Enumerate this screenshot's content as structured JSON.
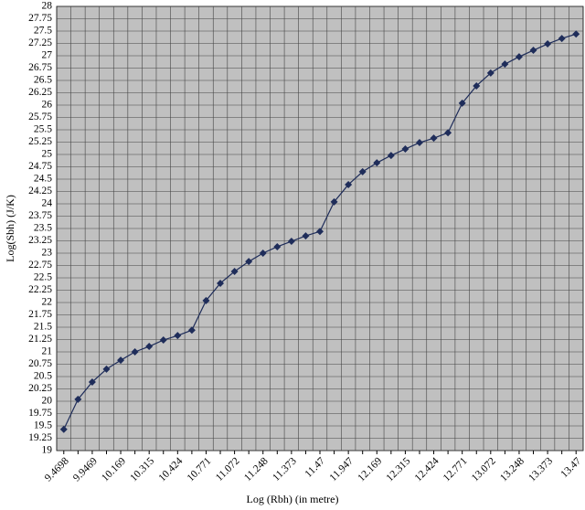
{
  "chart_data": {
    "type": "line",
    "x_label": "Log (Rbh) (in metre)",
    "y_label": "Log(Sbh) (J/K)",
    "categories": [
      "9.4698",
      null,
      "9.9469",
      null,
      "10.169",
      null,
      "10.315",
      null,
      "10.424",
      null,
      "10.771",
      null,
      "11.072",
      null,
      "11.248",
      null,
      "11.373",
      null,
      "11.47",
      null,
      "11.947",
      null,
      "12.169",
      null,
      "12.315",
      null,
      "12.424",
      null,
      "12.771",
      null,
      "13.072",
      null,
      "13.248",
      null,
      "13.373",
      null,
      "13.47"
    ],
    "series": [
      {
        "color": "#1f2d5a",
        "values": [
          19.43,
          20.04,
          20.39,
          20.65,
          20.83,
          21.0,
          21.11,
          21.24,
          21.33,
          21.44,
          22.04,
          22.39,
          22.63,
          22.83,
          23.0,
          23.13,
          23.24,
          23.35,
          23.44,
          24.04,
          24.39,
          24.65,
          24.83,
          24.98,
          25.11,
          25.24,
          25.33,
          25.44,
          26.04,
          26.39,
          26.65,
          26.83,
          26.98,
          27.11,
          27.24,
          27.35,
          27.44
        ]
      }
    ],
    "ylim": [
      19,
      28
    ],
    "yticks": [
      19,
      19.25,
      19.5,
      19.75,
      20,
      20.25,
      20.5,
      20.75,
      21,
      21.25,
      21.5,
      21.75,
      22,
      22.25,
      22.5,
      22.75,
      23,
      23.25,
      23.5,
      23.75,
      24,
      24.25,
      24.5,
      24.75,
      25,
      25.25,
      25.5,
      25.75,
      26,
      26.25,
      26.5,
      26.75,
      27,
      27.25,
      27.5,
      27.75,
      28
    ],
    "grid": true,
    "background": "#c0c0c0"
  }
}
